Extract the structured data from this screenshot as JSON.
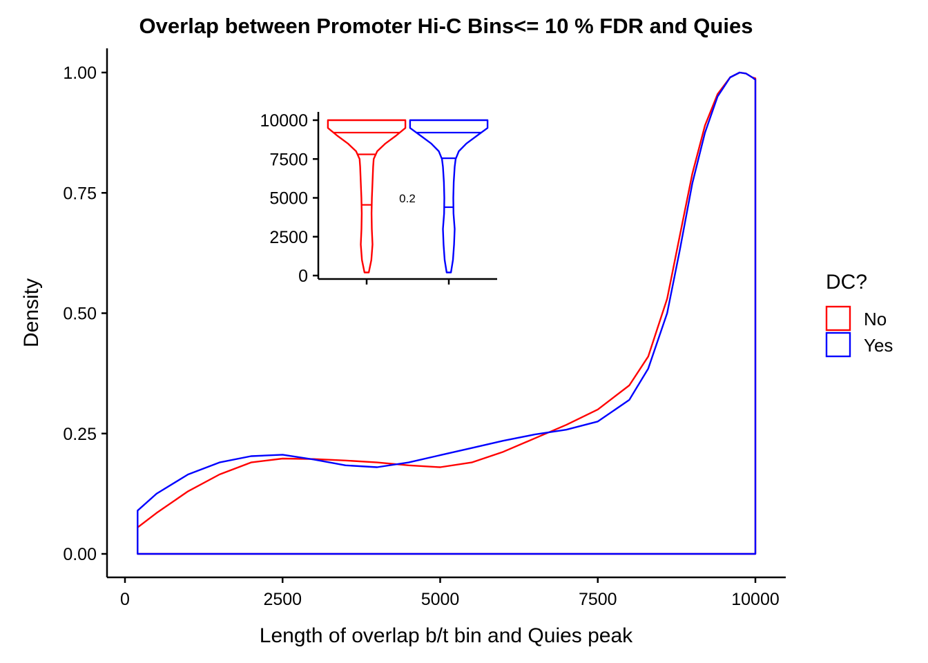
{
  "chart_data": [
    {
      "type": "area",
      "title": "Overlap between Promoter Hi-C Bins<= 10 % FDR and Quies",
      "xlabel": "Length of overlap b/t bin and Quies peak",
      "ylabel": "Density",
      "xlim": [
        200,
        10000
      ],
      "ylim": [
        0,
        1
      ],
      "xticks": [
        0,
        2500,
        5000,
        7500,
        10000
      ],
      "xtick_labels": [
        "0",
        "2500",
        "5000",
        "7500",
        "10000"
      ],
      "yticks": [
        0,
        0.25,
        0.5,
        0.75,
        1.0
      ],
      "ytick_labels": [
        "0.00",
        "0.25",
        "0.50",
        "0.75",
        "1.00"
      ],
      "grid": false,
      "legend": {
        "title": "DC?",
        "position": "right",
        "entries": [
          {
            "label": "No",
            "color": "#ff0000"
          },
          {
            "label": "Yes",
            "color": "#0000ff"
          }
        ]
      },
      "series": [
        {
          "name": "No",
          "color": "#ff0000",
          "x": [
            200,
            500,
            1000,
            1500,
            2000,
            2500,
            3000,
            3500,
            4000,
            4500,
            5000,
            5500,
            6000,
            6500,
            7000,
            7500,
            8000,
            8300,
            8600,
            8800,
            9000,
            9200,
            9400,
            9600,
            9750,
            9850,
            9950,
            10000
          ],
          "y": [
            0.055,
            0.085,
            0.13,
            0.165,
            0.19,
            0.198,
            0.197,
            0.194,
            0.19,
            0.184,
            0.18,
            0.19,
            0.212,
            0.24,
            0.268,
            0.3,
            0.35,
            0.41,
            0.53,
            0.66,
            0.79,
            0.89,
            0.955,
            0.99,
            1.0,
            0.998,
            0.99,
            0.988
          ]
        },
        {
          "name": "Yes",
          "color": "#0000ff",
          "x": [
            200,
            500,
            1000,
            1500,
            2000,
            2500,
            3000,
            3500,
            4000,
            4500,
            5000,
            5500,
            6000,
            6500,
            7000,
            7500,
            8000,
            8300,
            8600,
            8800,
            9000,
            9200,
            9400,
            9600,
            9750,
            9850,
            9950,
            10000
          ],
          "y": [
            0.09,
            0.125,
            0.165,
            0.19,
            0.203,
            0.206,
            0.196,
            0.184,
            0.18,
            0.19,
            0.205,
            0.22,
            0.235,
            0.248,
            0.258,
            0.275,
            0.32,
            0.385,
            0.5,
            0.63,
            0.77,
            0.875,
            0.95,
            0.99,
            1.0,
            0.998,
            0.99,
            0.985
          ]
        }
      ]
    },
    {
      "type": "violin",
      "title": "",
      "ylim": [
        0,
        10500
      ],
      "yticks": [
        0,
        2500,
        5000,
        7500,
        10000
      ],
      "ytick_labels": [
        "0",
        "2500",
        "5000",
        "7500",
        "10000"
      ],
      "annotation": "0.2",
      "groups": [
        {
          "name": "No",
          "color": "#ff0000",
          "y": [
            200,
            1000,
            2000,
            3000,
            4000,
            5000,
            6000,
            7000,
            7500,
            8000,
            8500,
            9000,
            9500,
            10000
          ],
          "half_width": [
            0.018,
            0.04,
            0.05,
            0.044,
            0.042,
            0.045,
            0.05,
            0.055,
            0.06,
            0.09,
            0.16,
            0.25,
            0.33,
            0.33
          ],
          "quantiles": [
            4550,
            7800,
            9200
          ]
        },
        {
          "name": "Yes",
          "color": "#0000ff",
          "y": [
            200,
            1000,
            2000,
            3000,
            4000,
            5000,
            6000,
            7000,
            7500,
            8000,
            8500,
            9000,
            9500,
            10000
          ],
          "half_width": [
            0.018,
            0.035,
            0.045,
            0.05,
            0.04,
            0.038,
            0.042,
            0.05,
            0.058,
            0.085,
            0.15,
            0.24,
            0.33,
            0.33
          ],
          "quantiles": [
            4400,
            7550,
            9200
          ]
        }
      ]
    }
  ]
}
